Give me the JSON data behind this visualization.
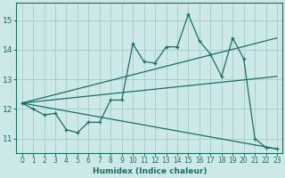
{
  "xlabel": "Humidex (Indice chaleur)",
  "bg_color": "#cde8e8",
  "grid_color": "#aacfcf",
  "line_color": "#1a6e64",
  "xlim": [
    -0.5,
    23.5
  ],
  "ylim": [
    10.5,
    15.6
  ],
  "yticks": [
    11,
    12,
    13,
    14,
    15
  ],
  "xticks": [
    0,
    1,
    2,
    3,
    4,
    5,
    6,
    7,
    8,
    9,
    10,
    11,
    12,
    13,
    14,
    15,
    16,
    17,
    18,
    19,
    20,
    21,
    22,
    23
  ],
  "main_line_x": [
    0,
    1,
    2,
    3,
    4,
    5,
    6,
    7,
    8,
    9,
    10,
    11,
    12,
    13,
    14,
    15,
    16,
    17,
    18,
    19,
    20,
    21,
    22,
    23
  ],
  "main_line_y": [
    12.2,
    12.0,
    11.8,
    11.85,
    11.3,
    11.2,
    11.55,
    11.55,
    12.3,
    12.3,
    14.2,
    13.6,
    13.55,
    14.1,
    14.1,
    15.2,
    14.3,
    13.85,
    13.1,
    14.4,
    13.7,
    11.0,
    10.7,
    10.65
  ],
  "trend_line1_x": [
    0,
    23
  ],
  "trend_line1_y": [
    12.2,
    14.4
  ],
  "trend_line2_x": [
    0,
    23
  ],
  "trend_line2_y": [
    12.2,
    13.1
  ],
  "trend_line3_x": [
    0,
    23
  ],
  "trend_line3_y": [
    12.2,
    10.65
  ]
}
